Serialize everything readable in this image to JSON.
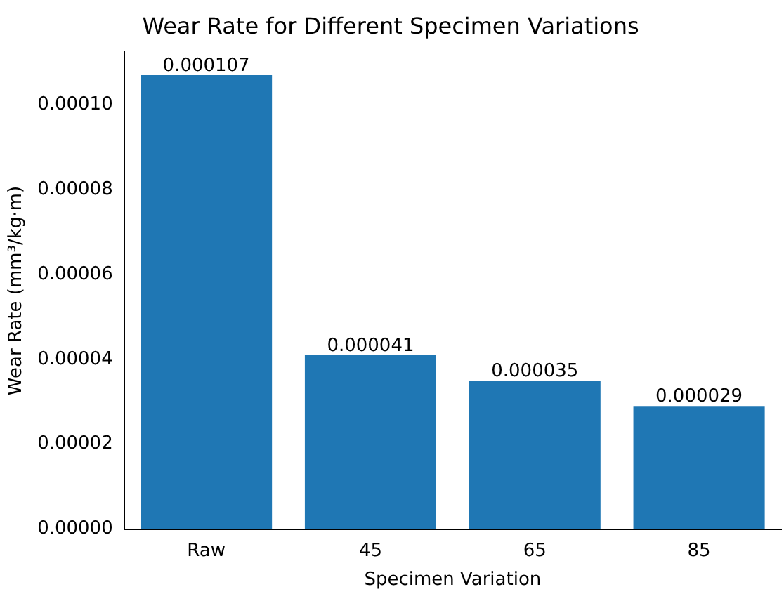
{
  "chart_data": {
    "type": "bar",
    "title": "Wear Rate for Different Specimen Variations",
    "xlabel": "Specimen Variation",
    "ylabel": "Wear Rate (mm³/kg·m)",
    "categories": [
      "Raw",
      "45",
      "65",
      "85"
    ],
    "values": [
      0.000107,
      4.1e-05,
      3.5e-05,
      2.9e-05
    ],
    "color": "#1f77b4",
    "ylim": [
      0,
      0.0001124
    ],
    "yticks": [
      {
        "value": 0,
        "label": "0.00000"
      },
      {
        "value": 2e-05,
        "label": "0.00002"
      },
      {
        "value": 4e-05,
        "label": "0.00004"
      },
      {
        "value": 6e-05,
        "label": "0.00006"
      },
      {
        "value": 8e-05,
        "label": "0.00008"
      },
      {
        "value": 0.0001,
        "label": "0.00010"
      }
    ],
    "value_labels": [
      "0.000107",
      "0.000041",
      "0.000035",
      "0.000029"
    ],
    "grid": false,
    "legend": false
  }
}
